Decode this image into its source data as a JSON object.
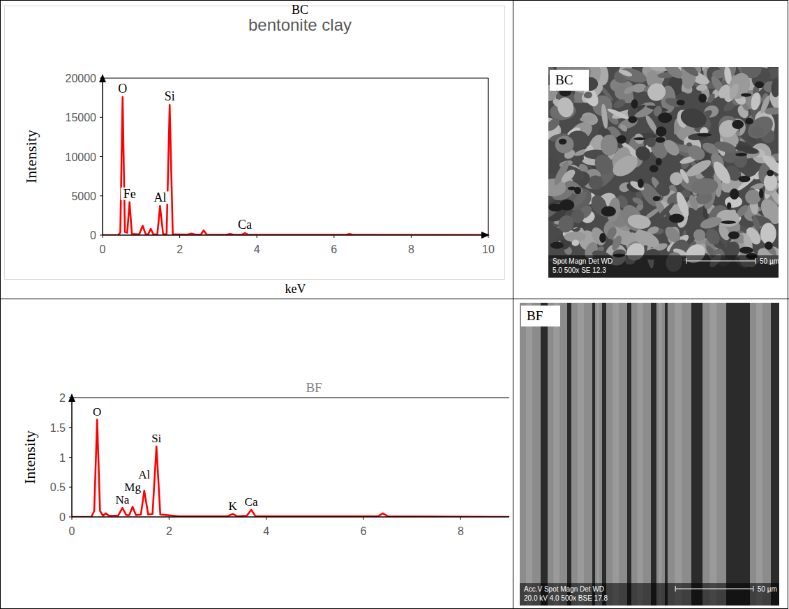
{
  "chart_data": [
    {
      "type": "line",
      "title": "bentonite clay",
      "subtitle": "BC",
      "x_label": "keV",
      "y_label": "Intensity",
      "x": [
        0,
        0.4,
        0.46,
        0.52,
        0.58,
        0.64,
        0.7,
        0.76,
        0.95,
        1.04,
        1.12,
        1.18,
        1.25,
        1.32,
        1.42,
        1.49,
        1.57,
        1.66,
        1.74,
        1.82,
        2.2,
        2.31,
        2.4,
        2.55,
        2.62,
        2.7,
        3.2,
        3.31,
        3.4,
        3.6,
        3.69,
        3.78,
        6.3,
        6.4,
        6.5,
        10
      ],
      "values": [
        0,
        0,
        300,
        17600,
        400,
        300,
        4200,
        150,
        80,
        1200,
        80,
        80,
        800,
        80,
        80,
        3700,
        100,
        100,
        16600,
        100,
        60,
        200,
        60,
        60,
        600,
        60,
        40,
        150,
        40,
        40,
        250,
        40,
        30,
        150,
        30,
        20
      ],
      "color": "#ff0000",
      "xlim": [
        0,
        10
      ],
      "ylim": [
        0,
        20000
      ],
      "xticks": [
        0,
        2,
        4,
        6,
        8,
        10
      ],
      "yticks": [
        0,
        5000,
        10000,
        15000,
        20000
      ],
      "annotations": [
        {
          "text": "O",
          "x": 0.52
        },
        {
          "text": "Fe",
          "x": 0.7
        },
        {
          "text": "Al",
          "x": 1.49
        },
        {
          "text": "Si",
          "x": 1.74
        },
        {
          "text": "Ca",
          "x": 3.69
        }
      ]
    },
    {
      "type": "line",
      "title": "BF",
      "y_label": "Intensity",
      "x": [
        0,
        0.4,
        0.46,
        0.52,
        0.58,
        0.64,
        0.7,
        0.76,
        0.95,
        1.04,
        1.12,
        1.18,
        1.25,
        1.32,
        1.42,
        1.49,
        1.57,
        1.66,
        1.74,
        1.82,
        2.2,
        3.2,
        3.31,
        3.4,
        3.6,
        3.69,
        3.78,
        6.3,
        6.4,
        6.5,
        9
      ],
      "values": [
        0,
        0,
        0.1,
        1.63,
        0.1,
        0.02,
        0.06,
        0.02,
        0.02,
        0.15,
        0.03,
        0.03,
        0.17,
        0.03,
        0.04,
        0.44,
        0.04,
        0.05,
        1.18,
        0.04,
        0.01,
        0.01,
        0.05,
        0.01,
        0.02,
        0.12,
        0.01,
        0.01,
        0.06,
        0.01,
        0
      ],
      "color": "#ff0000",
      "xlim": [
        0,
        9
      ],
      "ylim": [
        0,
        2
      ],
      "xticks": [
        0,
        2,
        4,
        6,
        8
      ],
      "yticks": [
        0,
        0.5,
        1,
        1.5,
        2
      ],
      "annotations": [
        {
          "text": "O",
          "x": 0.52
        },
        {
          "text": "Na",
          "x": 1.04
        },
        {
          "text": "Mg",
          "x": 1.25
        },
        {
          "text": "Al",
          "x": 1.49
        },
        {
          "text": "Si",
          "x": 1.74
        },
        {
          "text": "K",
          "x": 3.31
        },
        {
          "text": "Ca",
          "x": 3.69
        }
      ]
    }
  ],
  "images": [
    {
      "label": "BC",
      "info_header": "Spot Magn   Det  WD",
      "info_values": "5.0   500x   SE   12.3",
      "scale_bar": "50 µm"
    },
    {
      "label": "BF",
      "info_header": "Acc.V  Spot Magn   Det  WD",
      "info_values": "20.0 kV 4.0  500x   BSE 17.8",
      "scale_bar": "50 µm"
    }
  ]
}
